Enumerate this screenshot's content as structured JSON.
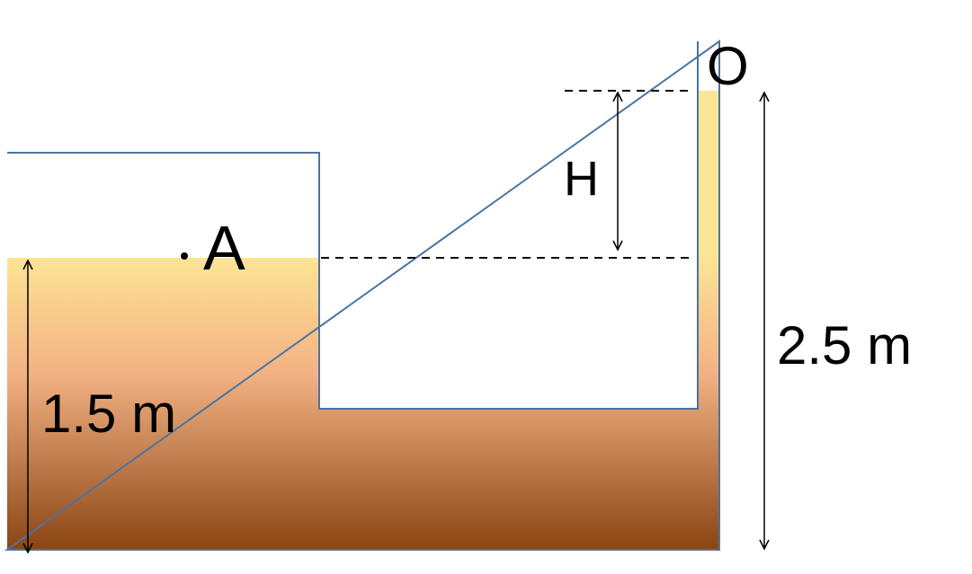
{
  "labels": {
    "point_a": "A",
    "point_o": "O",
    "height_h": "H",
    "tank_depth": "1.5 m",
    "tube_height": "2.5 m"
  },
  "colors": {
    "liquid_top": "#fde596",
    "liquid_mid": "#f2b183",
    "liquid_bottom": "#8b4513",
    "outline": "#4a73a3",
    "line": "#000000"
  }
}
